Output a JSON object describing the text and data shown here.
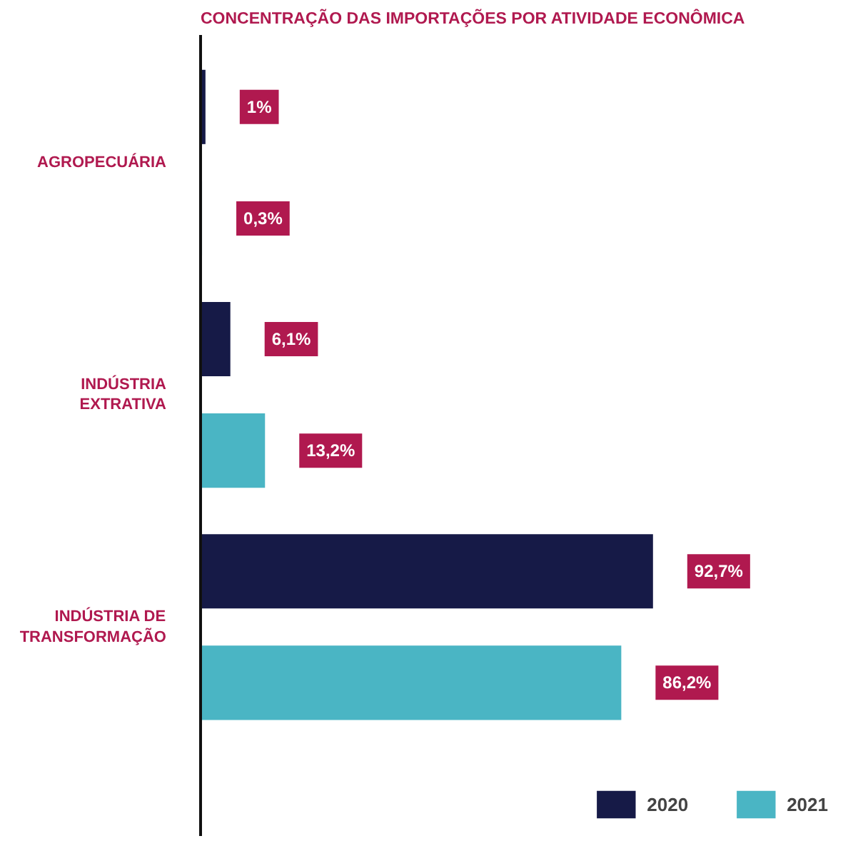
{
  "chart_data": {
    "type": "bar",
    "orientation": "horizontal",
    "title": "CONCENTRAÇÃO DAS IMPORTAÇÕES POR ATIVIDADE ECONÔMICA",
    "categories": [
      "AGROPECUÁRIA",
      "INDÚSTRIA EXTRATIVA",
      "INDÚSTRIA DE TRANSFORMAÇÃO"
    ],
    "series": [
      {
        "name": "2020",
        "color": "#161a47",
        "values": [
          1,
          6.1,
          92.7
        ],
        "value_labels": [
          "1%",
          "6,1%",
          "92,7%"
        ]
      },
      {
        "name": "2021",
        "color": "#4ab5c4",
        "values": [
          0.3,
          13.2,
          86.2
        ],
        "value_labels": [
          "0,3%",
          "13,2%",
          "86,2%"
        ]
      }
    ],
    "legend": "bottom right",
    "grid": false
  }
}
